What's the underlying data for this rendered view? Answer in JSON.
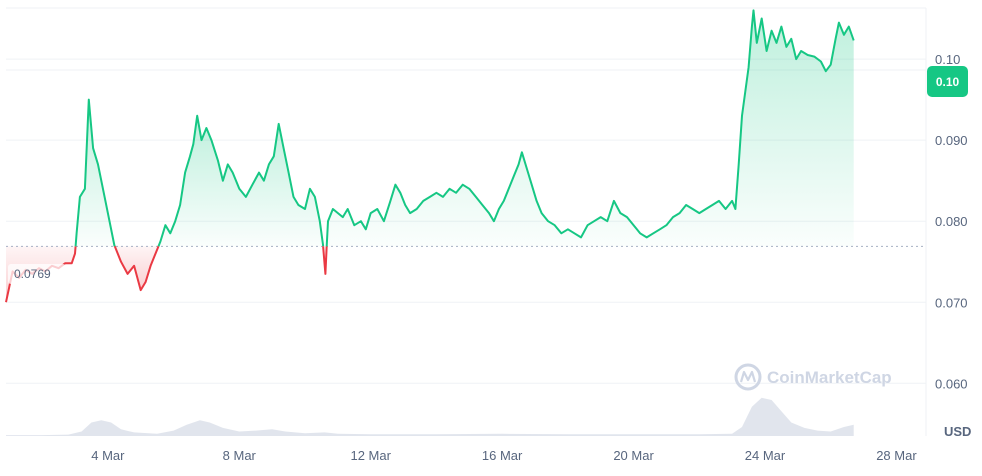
{
  "chart_data": {
    "type": "line",
    "currency": "USD",
    "watermark": "CoinMarketCap",
    "reference_value": 0.0769,
    "reference_label": "0.0769",
    "current_value": 0.1023,
    "current_label": "0.10",
    "ylim": [
      0.0535,
      0.1063
    ],
    "y_ticks": [
      {
        "value": 0.06,
        "label": "0.060"
      },
      {
        "value": 0.07,
        "label": "0.070"
      },
      {
        "value": 0.08,
        "label": "0.080"
      },
      {
        "value": 0.09,
        "label": "0.090"
      },
      {
        "value": 0.1,
        "label": "0.10"
      }
    ],
    "x_ticks": [
      {
        "x": 4,
        "label": "4 Mar"
      },
      {
        "x": 8,
        "label": "8 Mar"
      },
      {
        "x": 12,
        "label": "12 Mar"
      },
      {
        "x": 16,
        "label": "16 Mar"
      },
      {
        "x": 20,
        "label": "20 Mar"
      },
      {
        "x": 24,
        "label": "24 Mar"
      },
      {
        "x": 28,
        "label": "28 Mar"
      }
    ],
    "xlim": [
      0.9,
      28.9
    ],
    "colors": {
      "up": "#16c784",
      "down": "#ea3943",
      "volume": "#d9dfe8",
      "grid": "#eff2f5"
    },
    "series": [
      {
        "values": [
          [
            0.9,
            0.07
          ],
          [
            1.1,
            0.0738
          ],
          [
            1.3,
            0.073
          ],
          [
            1.5,
            0.074
          ],
          [
            1.7,
            0.0735
          ],
          [
            1.9,
            0.0742
          ],
          [
            2.1,
            0.0738
          ],
          [
            2.3,
            0.0745
          ],
          [
            2.5,
            0.0742
          ],
          [
            2.7,
            0.0748
          ],
          [
            2.9,
            0.0748
          ],
          [
            3.0,
            0.076
          ],
          [
            3.05,
            0.0785
          ],
          [
            3.15,
            0.083
          ],
          [
            3.3,
            0.084
          ],
          [
            3.42,
            0.095
          ],
          [
            3.55,
            0.089
          ],
          [
            3.7,
            0.087
          ],
          [
            3.9,
            0.083
          ],
          [
            4.05,
            0.08
          ],
          [
            4.2,
            0.077
          ],
          [
            4.4,
            0.075
          ],
          [
            4.6,
            0.0735
          ],
          [
            4.8,
            0.0745
          ],
          [
            5.0,
            0.0715
          ],
          [
            5.15,
            0.0725
          ],
          [
            5.3,
            0.0745
          ],
          [
            5.45,
            0.076
          ],
          [
            5.6,
            0.0775
          ],
          [
            5.75,
            0.0795
          ],
          [
            5.9,
            0.0785
          ],
          [
            6.05,
            0.08
          ],
          [
            6.2,
            0.082
          ],
          [
            6.35,
            0.086
          ],
          [
            6.5,
            0.088
          ],
          [
            6.6,
            0.0895
          ],
          [
            6.72,
            0.093
          ],
          [
            6.85,
            0.09
          ],
          [
            7.0,
            0.0915
          ],
          [
            7.15,
            0.09
          ],
          [
            7.35,
            0.0875
          ],
          [
            7.5,
            0.085
          ],
          [
            7.65,
            0.087
          ],
          [
            7.8,
            0.086
          ],
          [
            8.0,
            0.084
          ],
          [
            8.2,
            0.083
          ],
          [
            8.4,
            0.0845
          ],
          [
            8.6,
            0.086
          ],
          [
            8.75,
            0.085
          ],
          [
            8.9,
            0.087
          ],
          [
            9.05,
            0.088
          ],
          [
            9.2,
            0.092
          ],
          [
            9.35,
            0.089
          ],
          [
            9.5,
            0.086
          ],
          [
            9.65,
            0.083
          ],
          [
            9.8,
            0.082
          ],
          [
            10.0,
            0.0815
          ],
          [
            10.15,
            0.084
          ],
          [
            10.3,
            0.083
          ],
          [
            10.45,
            0.08
          ],
          [
            10.55,
            0.077
          ],
          [
            10.62,
            0.0735
          ],
          [
            10.7,
            0.08
          ],
          [
            10.85,
            0.0815
          ],
          [
            11.0,
            0.081
          ],
          [
            11.15,
            0.0805
          ],
          [
            11.3,
            0.0815
          ],
          [
            11.5,
            0.0795
          ],
          [
            11.7,
            0.08
          ],
          [
            11.85,
            0.079
          ],
          [
            12.0,
            0.081
          ],
          [
            12.2,
            0.0815
          ],
          [
            12.4,
            0.08
          ],
          [
            12.6,
            0.0825
          ],
          [
            12.75,
            0.0845
          ],
          [
            12.9,
            0.0835
          ],
          [
            13.05,
            0.082
          ],
          [
            13.2,
            0.081
          ],
          [
            13.4,
            0.0815
          ],
          [
            13.6,
            0.0825
          ],
          [
            13.8,
            0.083
          ],
          [
            14.0,
            0.0835
          ],
          [
            14.2,
            0.083
          ],
          [
            14.4,
            0.084
          ],
          [
            14.6,
            0.0835
          ],
          [
            14.8,
            0.0845
          ],
          [
            15.0,
            0.084
          ],
          [
            15.2,
            0.083
          ],
          [
            15.4,
            0.082
          ],
          [
            15.6,
            0.081
          ],
          [
            15.75,
            0.08
          ],
          [
            15.9,
            0.0815
          ],
          [
            16.05,
            0.0825
          ],
          [
            16.2,
            0.084
          ],
          [
            16.35,
            0.0855
          ],
          [
            16.5,
            0.087
          ],
          [
            16.6,
            0.0885
          ],
          [
            16.75,
            0.0865
          ],
          [
            16.9,
            0.0845
          ],
          [
            17.05,
            0.0825
          ],
          [
            17.2,
            0.081
          ],
          [
            17.4,
            0.08
          ],
          [
            17.6,
            0.0795
          ],
          [
            17.8,
            0.0785
          ],
          [
            18.0,
            0.079
          ],
          [
            18.2,
            0.0785
          ],
          [
            18.4,
            0.078
          ],
          [
            18.6,
            0.0795
          ],
          [
            18.8,
            0.08
          ],
          [
            19.0,
            0.0805
          ],
          [
            19.2,
            0.08
          ],
          [
            19.4,
            0.0825
          ],
          [
            19.6,
            0.081
          ],
          [
            19.8,
            0.0805
          ],
          [
            20.0,
            0.0795
          ],
          [
            20.2,
            0.0785
          ],
          [
            20.4,
            0.078
          ],
          [
            20.6,
            0.0785
          ],
          [
            20.8,
            0.079
          ],
          [
            21.0,
            0.0795
          ],
          [
            21.2,
            0.0805
          ],
          [
            21.4,
            0.081
          ],
          [
            21.6,
            0.082
          ],
          [
            21.8,
            0.0815
          ],
          [
            22.0,
            0.081
          ],
          [
            22.2,
            0.0815
          ],
          [
            22.4,
            0.082
          ],
          [
            22.6,
            0.0825
          ],
          [
            22.8,
            0.0815
          ],
          [
            23.0,
            0.0825
          ],
          [
            23.1,
            0.0815
          ],
          [
            23.2,
            0.087
          ],
          [
            23.3,
            0.093
          ],
          [
            23.4,
            0.096
          ],
          [
            23.5,
            0.099
          ],
          [
            23.6,
            0.104
          ],
          [
            23.65,
            0.106
          ],
          [
            23.75,
            0.102
          ],
          [
            23.9,
            0.105
          ],
          [
            24.05,
            0.101
          ],
          [
            24.2,
            0.1035
          ],
          [
            24.35,
            0.102
          ],
          [
            24.5,
            0.104
          ],
          [
            24.65,
            0.1015
          ],
          [
            24.8,
            0.1025
          ],
          [
            24.95,
            0.1
          ],
          [
            25.1,
            0.101
          ],
          [
            25.3,
            0.1005
          ],
          [
            25.5,
            0.1003
          ],
          [
            25.7,
            0.0997
          ],
          [
            25.85,
            0.0985
          ],
          [
            26.0,
            0.0993
          ],
          [
            26.15,
            0.1025
          ],
          [
            26.25,
            0.1045
          ],
          [
            26.4,
            0.103
          ],
          [
            26.55,
            0.104
          ],
          [
            26.7,
            0.1023
          ]
        ]
      }
    ],
    "volume": [
      [
        0.9,
        0.02
      ],
      [
        2.0,
        0.02
      ],
      [
        2.8,
        0.03
      ],
      [
        3.2,
        0.1
      ],
      [
        3.5,
        0.3
      ],
      [
        3.8,
        0.35
      ],
      [
        4.1,
        0.3
      ],
      [
        4.4,
        0.15
      ],
      [
        4.8,
        0.08
      ],
      [
        5.5,
        0.05
      ],
      [
        6.0,
        0.12
      ],
      [
        6.4,
        0.25
      ],
      [
        6.8,
        0.35
      ],
      [
        7.1,
        0.3
      ],
      [
        7.5,
        0.18
      ],
      [
        8.0,
        0.1
      ],
      [
        8.5,
        0.12
      ],
      [
        9.0,
        0.15
      ],
      [
        9.4,
        0.1
      ],
      [
        10.0,
        0.06
      ],
      [
        10.6,
        0.08
      ],
      [
        11.0,
        0.05
      ],
      [
        12.0,
        0.04
      ],
      [
        14.0,
        0.04
      ],
      [
        16.0,
        0.05
      ],
      [
        18.0,
        0.04
      ],
      [
        20.0,
        0.04
      ],
      [
        22.0,
        0.04
      ],
      [
        23.0,
        0.05
      ],
      [
        23.3,
        0.2
      ],
      [
        23.6,
        0.65
      ],
      [
        23.9,
        0.85
      ],
      [
        24.2,
        0.8
      ],
      [
        24.5,
        0.55
      ],
      [
        24.8,
        0.3
      ],
      [
        25.2,
        0.18
      ],
      [
        25.6,
        0.12
      ],
      [
        26.0,
        0.1
      ],
      [
        26.4,
        0.2
      ],
      [
        26.7,
        0.25
      ]
    ]
  }
}
